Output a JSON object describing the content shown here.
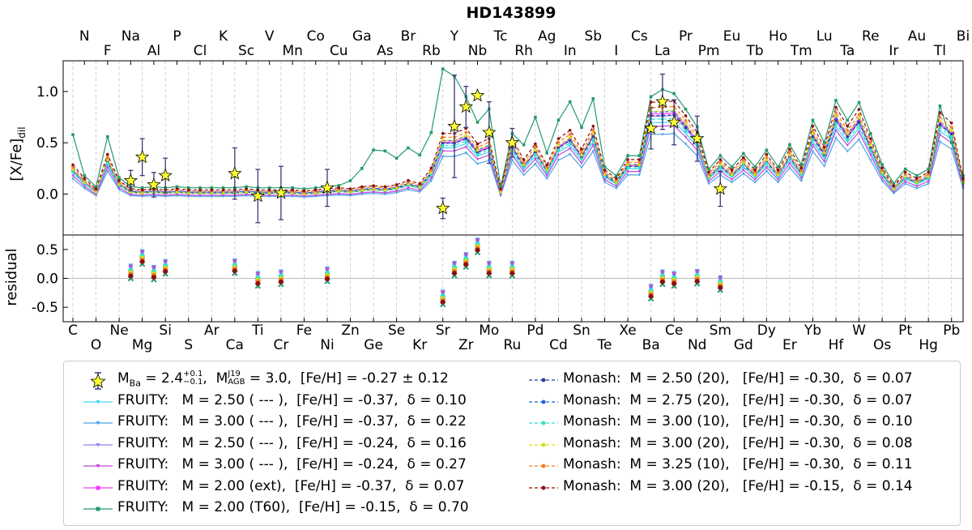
{
  "chart_data": {
    "type": "line",
    "title": "HD143899",
    "ylabel_top": "[X/Fe]dil",
    "ylabel_bottom": "residual",
    "ylim_top": [
      -0.4,
      1.3
    ],
    "ylim_bottom": [
      -0.75,
      0.75
    ],
    "yticks_top": [
      "0.0",
      "0.5",
      "1.0"
    ],
    "yticks_bottom": [
      "-0.5",
      "0.0",
      "0.5"
    ],
    "elements": [
      "C",
      "N",
      "O",
      "F",
      "Ne",
      "Na",
      "Mg",
      "Al",
      "Si",
      "P",
      "S",
      "Cl",
      "Ar",
      "K",
      "Ca",
      "Sc",
      "Ti",
      "V",
      "Cr",
      "Mn",
      "Fe",
      "Co",
      "Ni",
      "Cu",
      "Zn",
      "Ga",
      "Ge",
      "As",
      "Se",
      "Br",
      "Kr",
      "Rb",
      "Sr",
      "Y",
      "Zr",
      "Nb",
      "Mo",
      "Tc",
      "Ru",
      "Rh",
      "Pd",
      "Ag",
      "Cd",
      "In",
      "Sn",
      "Sb",
      "Te",
      "I",
      "Xe",
      "Cs",
      "Ba",
      "La",
      "Ce",
      "Pr",
      "Nd",
      "Pm",
      "Sm",
      "Eu",
      "Gd",
      "Tb",
      "Dy",
      "Ho",
      "Er",
      "Tm",
      "Yb",
      "Lu",
      "Hf",
      "Ta",
      "W",
      "Re",
      "Os",
      "Ir",
      "Pt",
      "Au",
      "Hg",
      "Tl",
      "Pb",
      "Bi"
    ],
    "observations": {
      "name": "M_Ba = 2.4, M_AGB^J19 = 3.0, [Fe/H] = -0.27 ± 0.12",
      "points": [
        {
          "el": "Na",
          "y": 0.13,
          "err": 0.1
        },
        {
          "el": "Mg",
          "y": 0.36,
          "err": 0.18
        },
        {
          "el": "Al",
          "y": 0.09,
          "err": 0.12
        },
        {
          "el": "Si",
          "y": 0.18,
          "err": 0.17
        },
        {
          "el": "Ca",
          "y": 0.2,
          "err": 0.25
        },
        {
          "el": "Ti",
          "y": -0.02,
          "err": 0.26
        },
        {
          "el": "Cr",
          "y": 0.01,
          "err": 0.26
        },
        {
          "el": "Ni",
          "y": 0.06,
          "err": 0.18
        },
        {
          "el": "Sr",
          "y": -0.14,
          "err": 0.1
        },
        {
          "el": "Y",
          "y": 0.66,
          "err": 0.5
        },
        {
          "el": "Zr",
          "y": 0.85,
          "err": 0.2
        },
        {
          "el": "Nb",
          "y": 0.96,
          "err": 0.0
        },
        {
          "el": "Mo",
          "y": 0.6,
          "err": 0.3
        },
        {
          "el": "Ru",
          "y": 0.5,
          "err": 0.14
        },
        {
          "el": "Ba",
          "y": 0.64,
          "err": 0.2
        },
        {
          "el": "La",
          "y": 0.9,
          "err": 0.27
        },
        {
          "el": "Ce",
          "y": 0.7,
          "err": 0.22
        },
        {
          "el": "Nd",
          "y": 0.54,
          "err": 0.22
        },
        {
          "el": "Sm",
          "y": 0.05,
          "err": 0.17
        }
      ]
    },
    "series": [
      {
        "label": "FRUITY:   M = 2.50 ( --- ),  [Fe/H] = -0.37,  δ = 0.10",
        "color": "#41d5f0",
        "marker": "tri",
        "dash": "",
        "scale": 0.82,
        "offset": 0.0,
        "res_offset": 0.07
      },
      {
        "label": "FRUITY:   M = 3.00 ( --- ),  [Fe/H] = -0.37,  δ = 0.22",
        "color": "#4da3e8",
        "marker": "tri",
        "dash": "",
        "scale": 0.72,
        "offset": -0.03,
        "res_offset": 0.12
      },
      {
        "label": "FRUITY:   M = 2.50 ( --- ),  [Fe/H] = -0.24,  δ = 0.16",
        "color": "#8f87f0",
        "marker": "tri",
        "dash": "",
        "scale": 0.88,
        "offset": 0.01,
        "res_offset": 0.03
      },
      {
        "label": "FRUITY:   M = 3.00 ( --- ),  [Fe/H] = -0.24,  δ = 0.27",
        "color": "#c147d8",
        "marker": "tri",
        "dash": "",
        "scale": 0.8,
        "offset": -0.02,
        "res_offset": 0.1
      },
      {
        "label": "FRUITY:   M = 2.00 (ext),  [Fe/H] = -0.37,  δ = 0.07",
        "color": "#f43cf4",
        "marker": "square",
        "dash": "",
        "scale": 0.92,
        "offset": 0.0,
        "res_offset": 0.0
      },
      {
        "label": "FRUITY:   M = 2.00 (T60),  [Fe/H] = -0.15,  δ = 0.70",
        "color": "#259a6e",
        "marker": "square",
        "dash": "",
        "scale": 1.08,
        "offset": 0.05,
        "res_offset": -0.1
      },
      {
        "label": "Monash:  M = 2.50 (20),   [Fe/H] = -0.30,  δ = 0.07",
        "color": "#2a3a9e",
        "marker": "dot",
        "dash": "4,3",
        "scale": 0.9,
        "offset": 0.0,
        "res_offset": 0.01
      },
      {
        "label": "Monash:  M = 2.75 (20),   [Fe/H] = -0.30,  δ = 0.07",
        "color": "#2065d8",
        "marker": "dot",
        "dash": "4,3",
        "scale": 0.93,
        "offset": 0.01,
        "res_offset": -0.01
      },
      {
        "label": "Monash:  M = 3.00 (10),   [Fe/H] = -0.30,  δ = 0.10",
        "color": "#30e0c8",
        "marker": "dot",
        "dash": "4,3",
        "scale": 0.86,
        "offset": 0.0,
        "res_offset": 0.04
      },
      {
        "label": "Monash:  M = 3.00 (20),   [Fe/H] = -0.30,  δ = 0.08",
        "color": "#d6e010",
        "marker": "dot",
        "dash": "4,3",
        "scale": 0.95,
        "offset": 0.0,
        "res_offset": 0.0
      },
      {
        "label": "Monash:  M = 3.25 (10),   [Fe/H] = -0.30,  δ = 0.11",
        "color": "#f57c1f",
        "marker": "dot",
        "dash": "4,3",
        "scale": 0.97,
        "offset": 0.02,
        "res_offset": -0.03
      },
      {
        "label": "Monash:  M = 3.00 (20),   [Fe/H] = -0.15,  δ = 0.14",
        "color": "#8c1010",
        "marker": "dot",
        "dash": "4,3",
        "scale": 1.02,
        "offset": 0.03,
        "res_offset": -0.06
      }
    ],
    "base_model": [
      0.25,
      0.12,
      0.02,
      0.35,
      0.1,
      0.02,
      0.01,
      0.02,
      0.01,
      0.02,
      0.01,
      0.01,
      0.01,
      0.01,
      0.01,
      0.02,
      0.01,
      0.01,
      0.01,
      0.01,
      0.0,
      0.01,
      0.02,
      0.03,
      0.02,
      0.04,
      0.05,
      0.04,
      0.06,
      0.1,
      0.07,
      0.22,
      0.55,
      0.55,
      0.6,
      0.45,
      0.5,
      0.02,
      0.5,
      0.3,
      0.45,
      0.25,
      0.5,
      0.58,
      0.4,
      0.62,
      0.2,
      0.12,
      0.3,
      0.3,
      0.85,
      0.85,
      0.86,
      0.72,
      0.56,
      0.18,
      0.3,
      0.2,
      0.32,
      0.2,
      0.35,
      0.2,
      0.4,
      0.22,
      0.62,
      0.42,
      0.8,
      0.62,
      0.78,
      0.5,
      0.22,
      0.05,
      0.18,
      0.12,
      0.18,
      0.75,
      0.65,
      0.12
    ],
    "t60_overrides": {
      "C": 0.58,
      "F": 0.56,
      "Zn": 0.13,
      "Ga": 0.25,
      "Ge": 0.43,
      "As": 0.42,
      "Se": 0.35,
      "Br": 0.45,
      "Kr": 0.38,
      "Rb": 0.6,
      "Sr": 1.22,
      "Y": 1.15,
      "Zr": 0.95,
      "Nb": 0.7,
      "Mo": 0.83,
      "Rh": 0.48,
      "Pd": 0.75,
      "Ag": 0.4,
      "Cd": 0.72,
      "In": 0.9,
      "Sn": 0.65,
      "Sb": 0.93,
      "Ba": 0.95,
      "La": 1.02,
      "Ce": 0.98,
      "Pb": 0.5
    },
    "residual_points": [
      {
        "el": "Na",
        "y": 0.1
      },
      {
        "el": "Mg",
        "y": 0.35
      },
      {
        "el": "Al",
        "y": 0.08
      },
      {
        "el": "Si",
        "y": 0.18
      },
      {
        "el": "Ca",
        "y": 0.19
      },
      {
        "el": "Ti",
        "y": -0.03
      },
      {
        "el": "Cr",
        "y": 0.0
      },
      {
        "el": "Ni",
        "y": 0.05
      },
      {
        "el": "Sr",
        "y": -0.35
      },
      {
        "el": "Y",
        "y": 0.15
      },
      {
        "el": "Zr",
        "y": 0.3
      },
      {
        "el": "Nb",
        "y": 0.55
      },
      {
        "el": "Mo",
        "y": 0.15
      },
      {
        "el": "Ru",
        "y": 0.15
      },
      {
        "el": "Ba",
        "y": -0.25
      },
      {
        "el": "La",
        "y": 0.0
      },
      {
        "el": "Ce",
        "y": -0.03
      },
      {
        "el": "Nd",
        "y": 0.01
      },
      {
        "el": "Sm",
        "y": -0.1
      }
    ]
  }
}
